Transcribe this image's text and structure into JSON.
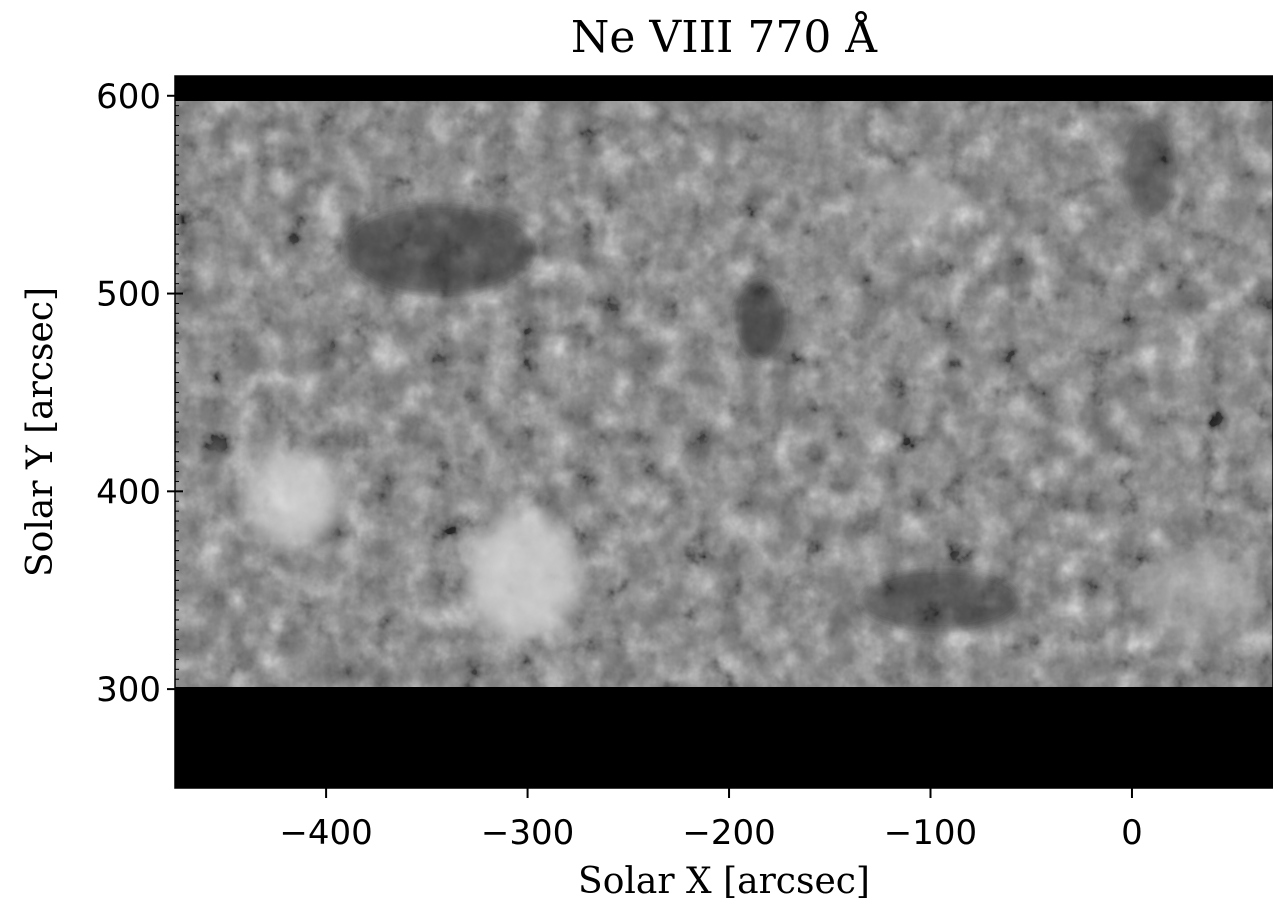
{
  "chart_data": {
    "type": "heatmap",
    "title": "Ne VIII 770 Å",
    "xlabel": "Solar X [arcsec]",
    "ylabel": "Solar Y [arcsec]",
    "xlim": [
      -475,
      70
    ],
    "ylim": [
      250,
      610
    ],
    "x_ticks": [
      -400,
      -300,
      -200,
      -100,
      0
    ],
    "x_tick_labels": [
      "−400",
      "−300",
      "−200",
      "−100",
      "0"
    ],
    "y_ticks": [
      300,
      400,
      500,
      600
    ],
    "y_tick_labels": [
      "300",
      "400",
      "500",
      "600"
    ],
    "data_extent": {
      "x": [
        -475,
        70
      ],
      "y": [
        298,
        597
      ]
    },
    "colormap": "grayscale",
    "background_color": "#000000",
    "grid": false
  }
}
